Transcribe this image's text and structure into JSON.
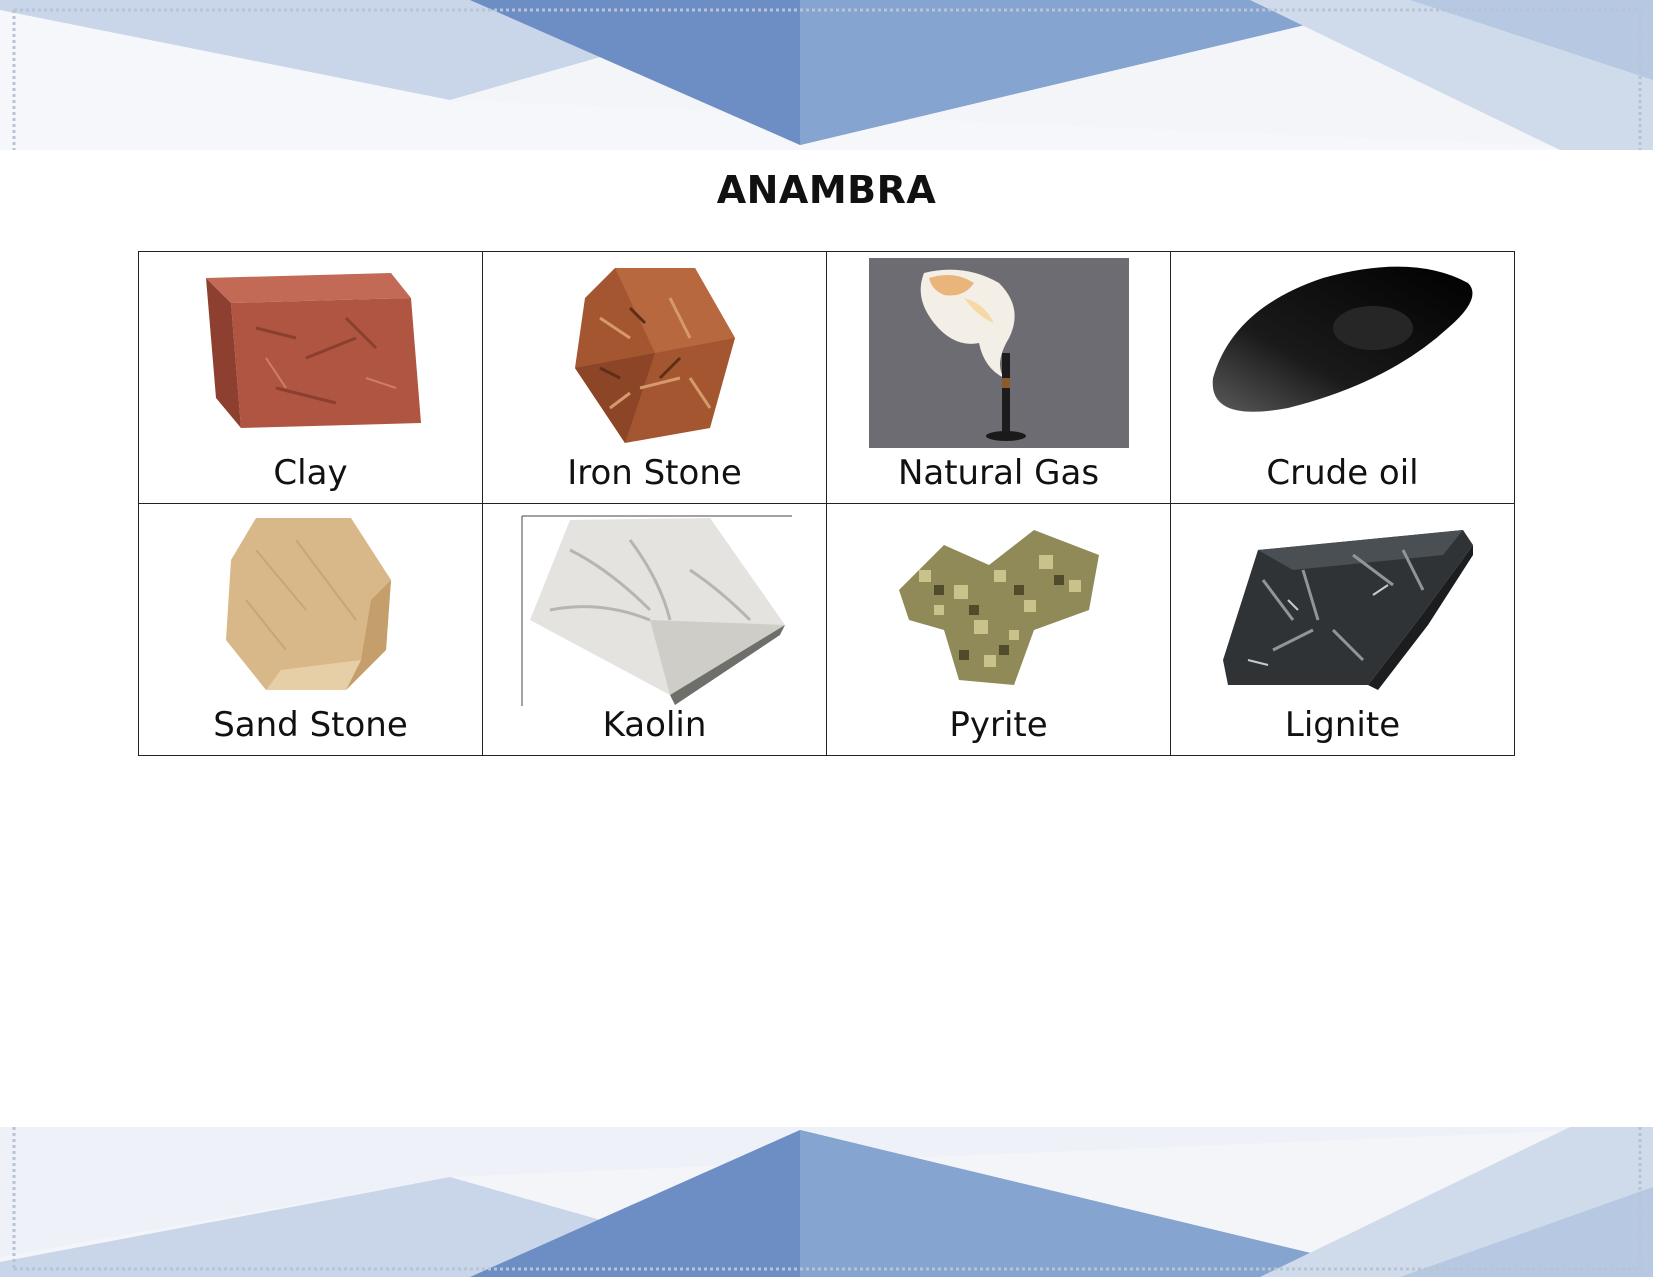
{
  "document": {
    "title": "ANAMBRA"
  },
  "minerals": [
    {
      "label": "Clay",
      "icon": "clay-brick-icon"
    },
    {
      "label": "Iron Stone",
      "icon": "iron-stone-icon"
    },
    {
      "label": "Natural Gas",
      "icon": "natural-gas-flare-icon"
    },
    {
      "label": "Crude oil",
      "icon": "crude-oil-drop-icon"
    },
    {
      "label": "Sand Stone",
      "icon": "sand-stone-icon"
    },
    {
      "label": "Kaolin",
      "icon": "kaolin-icon"
    },
    {
      "label": "Pyrite",
      "icon": "pyrite-icon"
    },
    {
      "label": "Lignite",
      "icon": "lignite-icon"
    }
  ],
  "colors": {
    "banner_blue": "#5f86bf",
    "banner_light": "#c7d5ea",
    "clay": "#b45a45",
    "iron_stone": "#a0552e",
    "gas_bg": "#6d6c72",
    "crude_oil": "#111111",
    "sand_stone": "#d8b888",
    "kaolin": "#e4e3df",
    "pyrite": "#8f8a57",
    "lignite": "#2f3336"
  }
}
